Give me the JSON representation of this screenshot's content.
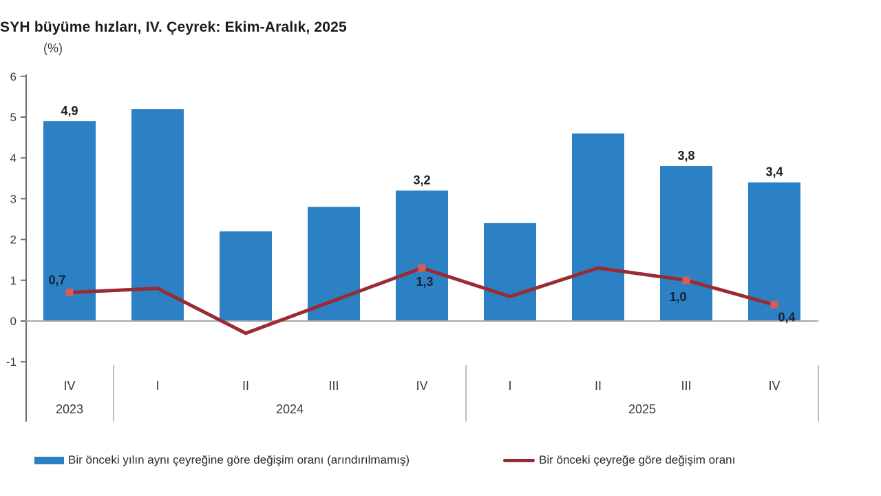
{
  "header": {
    "title": "SYH büyüme hızları, IV. Çeyrek: Ekim-Aralık, 2025",
    "axis_unit": "(%)"
  },
  "legend": [
    {
      "swatch": "bar",
      "color": "#2c80c4",
      "label": "Bir önceki yılın aynı çeyreğine göre değişim oranı (arındırılmamış)"
    },
    {
      "swatch": "line",
      "color": "#9a2b32",
      "label": "Bir önceki çeyreğe göre değişim oranı"
    }
  ],
  "chart_data": {
    "type": "bar+line",
    "categories": [
      "IV",
      "I",
      "II",
      "III",
      "IV",
      "I",
      "II",
      "III",
      "IV"
    ],
    "year_groups": [
      {
        "label": "2023",
        "count": 1
      },
      {
        "label": "2024",
        "count": 4
      },
      {
        "label": "2025",
        "count": 4
      }
    ],
    "series": [
      {
        "name": "Bir önceki yılın aynı çeyreğine göre değişim oranı (arındırılmamış)",
        "type": "bar",
        "color": "#2c80c4",
        "values": [
          4.9,
          5.2,
          2.2,
          2.8,
          3.2,
          2.4,
          4.6,
          3.8,
          3.4
        ],
        "labels": {
          "0": "4,9",
          "4": "3,2",
          "7": "3,8",
          "8": "3,4"
        }
      },
      {
        "name": "Bir önceki çeyreğe göre değişim oranı",
        "type": "line",
        "color": "#9a2b32",
        "marker_color": "#d05f55",
        "values": [
          0.7,
          0.8,
          -0.3,
          0.5,
          1.3,
          0.6,
          1.3,
          1.0,
          0.4
        ],
        "markers": [
          0,
          4,
          7,
          8
        ],
        "labels": {
          "0": {
            "text": "0,7",
            "pos": "above-left"
          },
          "4": {
            "text": "1,3",
            "pos": "below"
          },
          "7": {
            "text": "1,0",
            "pos": "below-left"
          },
          "8": {
            "text": "0,4",
            "pos": "below-right"
          }
        }
      }
    ],
    "ylim": [
      -1,
      6
    ],
    "yticks": [
      6,
      5,
      4,
      3,
      2,
      1,
      0,
      -1
    ],
    "grid": false,
    "legend_position": "bottom"
  },
  "style_colors": {
    "axis_line": "#6e6e6e",
    "baseline": "#a8a8a8",
    "separator": "#a8a8a8",
    "axis_text": "#3a3a3a",
    "bar_label_text": "#1a1a1a",
    "line_label_text": "#1a2138"
  }
}
